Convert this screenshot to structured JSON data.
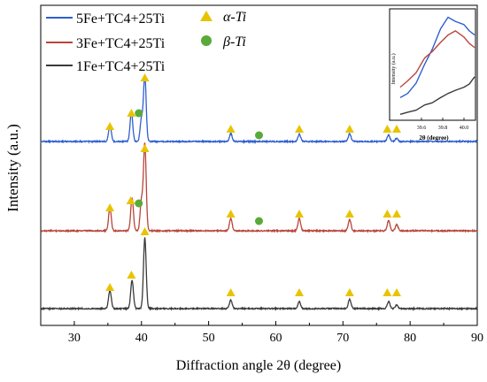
{
  "chart_data": {
    "type": "line",
    "title": "",
    "xlabel": "Diffraction angle 2θ (degree)",
    "ylabel": "Intensity (a.u.)",
    "xlim": [
      25,
      90
    ],
    "xticks": [
      30,
      40,
      50,
      60,
      70,
      80,
      90
    ],
    "grid": false,
    "legend_position": "top-left",
    "series": [
      {
        "name": "5Fe+TC4+25Ti",
        "color": "#2f5fcf",
        "peaks": [
          {
            "x": 35.3,
            "h": 0.25
          },
          {
            "x": 38.5,
            "h": 0.44
          },
          {
            "x": 40.0,
            "h": 0.34
          },
          {
            "x": 40.5,
            "h": 1.0
          },
          {
            "x": 53.3,
            "h": 0.12
          },
          {
            "x": 63.5,
            "h": 0.11
          },
          {
            "x": 71.0,
            "h": 0.12
          },
          {
            "x": 76.8,
            "h": 0.1
          },
          {
            "x": 78.0,
            "h": 0.05
          }
        ]
      },
      {
        "name": "3Fe+TC4+25Ti",
        "color": "#b8453a",
        "peaks": [
          {
            "x": 35.3,
            "h": 0.26
          },
          {
            "x": 38.6,
            "h": 0.38
          },
          {
            "x": 40.0,
            "h": 0.35
          },
          {
            "x": 40.5,
            "h": 1.0
          },
          {
            "x": 53.3,
            "h": 0.14
          },
          {
            "x": 63.5,
            "h": 0.14
          },
          {
            "x": 71.0,
            "h": 0.13
          },
          {
            "x": 76.8,
            "h": 0.12
          },
          {
            "x": 78.0,
            "h": 0.07
          }
        ]
      },
      {
        "name": "1Fe+TC4+25Ti",
        "color": "#3a3a3a",
        "peaks": [
          {
            "x": 35.3,
            "h": 0.26
          },
          {
            "x": 38.6,
            "h": 0.4
          },
          {
            "x": 40.5,
            "h": 1.0
          },
          {
            "x": 53.3,
            "h": 0.12
          },
          {
            "x": 63.5,
            "h": 0.1
          },
          {
            "x": 71.0,
            "h": 0.13
          },
          {
            "x": 76.8,
            "h": 0.1
          },
          {
            "x": 78.0,
            "h": 0.05
          }
        ]
      }
    ],
    "phase_legend": [
      {
        "label": "α-Ti",
        "marker": "triangle",
        "color": "#e8c400"
      },
      {
        "label": "β-Ti",
        "marker": "circle",
        "color": "#5aaa3a"
      }
    ],
    "markers": [
      {
        "series": 0,
        "x": 35.3,
        "phase": "alpha"
      },
      {
        "series": 0,
        "x": 38.5,
        "phase": "alpha"
      },
      {
        "series": 0,
        "x": 39.6,
        "phase": "beta"
      },
      {
        "series": 0,
        "x": 40.5,
        "phase": "alpha"
      },
      {
        "series": 0,
        "x": 53.3,
        "phase": "alpha"
      },
      {
        "series": 0,
        "x": 57.5,
        "phase": "beta"
      },
      {
        "series": 0,
        "x": 63.5,
        "phase": "alpha"
      },
      {
        "series": 0,
        "x": 71.0,
        "phase": "alpha"
      },
      {
        "series": 0,
        "x": 76.6,
        "phase": "alpha"
      },
      {
        "series": 0,
        "x": 78.0,
        "phase": "alpha"
      },
      {
        "series": 1,
        "x": 35.3,
        "phase": "alpha"
      },
      {
        "series": 1,
        "x": 38.4,
        "phase": "alpha"
      },
      {
        "series": 1,
        "x": 39.6,
        "phase": "beta"
      },
      {
        "series": 1,
        "x": 40.5,
        "phase": "alpha"
      },
      {
        "series": 1,
        "x": 53.3,
        "phase": "alpha"
      },
      {
        "series": 1,
        "x": 57.5,
        "phase": "beta"
      },
      {
        "series": 1,
        "x": 63.5,
        "phase": "alpha"
      },
      {
        "series": 1,
        "x": 71.0,
        "phase": "alpha"
      },
      {
        "series": 1,
        "x": 76.6,
        "phase": "alpha"
      },
      {
        "series": 1,
        "x": 78.0,
        "phase": "alpha"
      },
      {
        "series": 2,
        "x": 35.3,
        "phase": "alpha"
      },
      {
        "series": 2,
        "x": 38.5,
        "phase": "alpha"
      },
      {
        "series": 2,
        "x": 40.5,
        "phase": "alpha"
      },
      {
        "series": 2,
        "x": 53.3,
        "phase": "alpha"
      },
      {
        "series": 2,
        "x": 63.5,
        "phase": "alpha"
      },
      {
        "series": 2,
        "x": 71.0,
        "phase": "alpha"
      },
      {
        "series": 2,
        "x": 76.6,
        "phase": "alpha"
      },
      {
        "series": 2,
        "x": 78.0,
        "phase": "alpha"
      }
    ],
    "inset": {
      "xlabel": "2θ (degree)",
      "ylabel": "Intensity (a.u.)",
      "xlim": [
        39.4,
        40.1
      ],
      "xticks": [
        39.6,
        39.8,
        40.0
      ],
      "series": [
        {
          "name": "5Fe+TC4+25Ti",
          "x": [
            39.4,
            39.47,
            39.55,
            39.63,
            39.7,
            39.78,
            39.85,
            39.92,
            40.0,
            40.05,
            40.1
          ],
          "y": [
            0.2,
            0.24,
            0.34,
            0.52,
            0.66,
            0.86,
            0.97,
            0.93,
            0.9,
            0.84,
            0.8
          ]
        },
        {
          "name": "3Fe+TC4+25Ti",
          "x": [
            39.4,
            39.47,
            39.55,
            39.63,
            39.7,
            39.78,
            39.85,
            39.92,
            40.0,
            40.05,
            40.1
          ],
          "y": [
            0.3,
            0.36,
            0.44,
            0.58,
            0.64,
            0.73,
            0.8,
            0.84,
            0.78,
            0.72,
            0.68
          ]
        },
        {
          "name": "1Fe+TC4+25Ti",
          "x": [
            39.4,
            39.47,
            39.55,
            39.63,
            39.7,
            39.78,
            39.85,
            39.92,
            40.0,
            40.05,
            40.1
          ],
          "y": [
            0.04,
            0.06,
            0.08,
            0.13,
            0.15,
            0.2,
            0.24,
            0.27,
            0.3,
            0.33,
            0.4
          ]
        }
      ]
    }
  }
}
